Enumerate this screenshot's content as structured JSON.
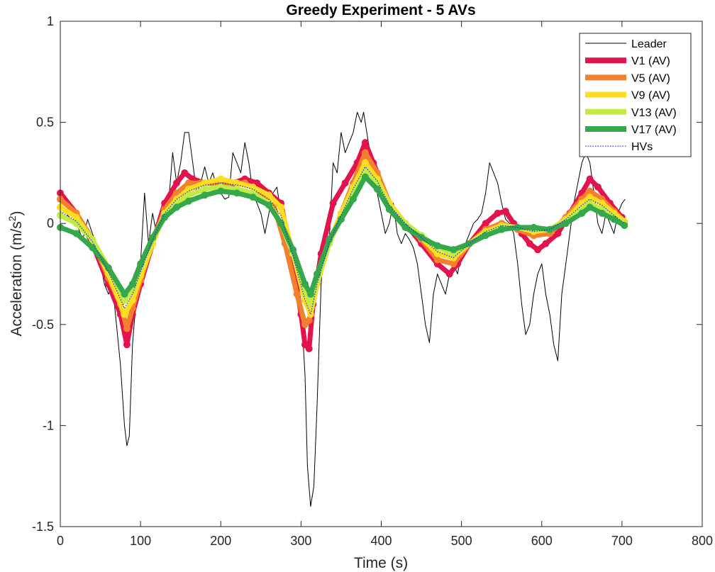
{
  "chart_data": {
    "type": "line",
    "title": "Greedy Experiment - 5 AVs",
    "xlabel": "Time (s)",
    "ylabel_main": "Acceleration (m/s",
    "ylabel_sup": "2",
    "ylabel_close": ")",
    "xlim": [
      0,
      800
    ],
    "ylim": [
      -1.5,
      1
    ],
    "xticks": [
      0,
      100,
      200,
      300,
      400,
      500,
      600,
      700,
      800
    ],
    "xtick_labels": [
      "0",
      "100",
      "200",
      "300",
      "400",
      "500",
      "600",
      "700",
      "800"
    ],
    "yticks": [
      -1.5,
      -1,
      -0.5,
      0,
      0.5,
      1
    ],
    "ytick_labels": [
      "-1.5",
      "-1",
      "-0.5",
      "0",
      "0.5",
      "1"
    ],
    "legend_position": "top-right",
    "grid": false,
    "series": [
      {
        "name": "Leader",
        "color": "#000000",
        "style": "thin",
        "x": [
          0,
          8,
          15,
          22,
          28,
          34,
          40,
          45,
          50,
          55,
          60,
          65,
          70,
          75,
          80,
          83,
          86,
          90,
          95,
          100,
          105,
          110,
          115,
          120,
          125,
          130,
          135,
          140,
          145,
          150,
          155,
          160,
          165,
          170,
          175,
          180,
          185,
          190,
          195,
          200,
          205,
          210,
          215,
          220,
          225,
          230,
          235,
          240,
          245,
          250,
          255,
          260,
          265,
          270,
          275,
          280,
          285,
          290,
          295,
          300,
          305,
          308,
          312,
          316,
          320,
          325,
          330,
          335,
          340,
          345,
          350,
          355,
          360,
          365,
          370,
          375,
          378,
          382,
          386,
          390,
          395,
          400,
          405,
          410,
          415,
          420,
          425,
          430,
          435,
          440,
          445,
          450,
          455,
          460,
          465,
          470,
          475,
          480,
          485,
          490,
          495,
          500,
          505,
          510,
          515,
          520,
          525,
          530,
          535,
          540,
          545,
          550,
          555,
          560,
          565,
          570,
          575,
          580,
          585,
          590,
          595,
          600,
          605,
          610,
          615,
          620,
          625,
          630,
          635,
          640,
          645,
          650,
          655,
          660,
          665,
          670,
          675,
          680,
          685,
          690,
          695,
          700,
          704
        ],
        "y": [
          0.1,
          0.05,
          0.0,
          -0.02,
          -0.08,
          0.02,
          -0.05,
          -0.1,
          -0.2,
          -0.3,
          -0.35,
          -0.3,
          -0.5,
          -0.7,
          -1.0,
          -1.1,
          -1.05,
          -0.6,
          -0.35,
          -0.2,
          0.15,
          -0.1,
          0.05,
          -0.05,
          0.0,
          0.1,
          0.1,
          0.35,
          0.2,
          0.3,
          0.45,
          0.45,
          0.3,
          0.15,
          0.2,
          0.28,
          0.2,
          0.25,
          0.18,
          0.15,
          0.12,
          0.13,
          0.35,
          0.3,
          0.25,
          0.4,
          0.3,
          0.15,
          0.1,
          0.05,
          -0.05,
          0.05,
          0.15,
          0.18,
          0.05,
          -0.05,
          -0.15,
          -0.2,
          -0.3,
          -0.4,
          -0.75,
          -1.2,
          -1.4,
          -1.3,
          -0.9,
          -0.3,
          -0.05,
          -0.1,
          0.3,
          0.25,
          0.45,
          0.35,
          0.4,
          0.45,
          0.55,
          0.5,
          0.55,
          0.45,
          0.35,
          0.25,
          0.15,
          0.05,
          -0.05,
          0.0,
          0.1,
          -0.05,
          -0.1,
          -0.05,
          -0.08,
          -0.12,
          -0.2,
          -0.35,
          -0.5,
          -0.59,
          -0.35,
          -0.25,
          -0.3,
          -0.35,
          -0.25,
          -0.2,
          -0.25,
          -0.15,
          -0.1,
          -0.05,
          0.0,
          0.02,
          0.05,
          0.15,
          0.3,
          0.25,
          0.2,
          0.1,
          0.02,
          0.0,
          -0.05,
          -0.2,
          -0.4,
          -0.55,
          -0.5,
          -0.35,
          -0.25,
          -0.2,
          -0.35,
          -0.45,
          -0.6,
          -0.68,
          -0.35,
          -0.2,
          -0.05,
          0.1,
          0.2,
          0.3,
          0.35,
          0.3,
          0.15,
          0.0,
          -0.05,
          0.05,
          0.0,
          -0.05,
          0.05,
          0.1,
          0.12
        ]
      },
      {
        "name": "V1 (AV)",
        "color": "#E2134D",
        "x": [
          0,
          20,
          40,
          60,
          75,
          83,
          90,
          100,
          115,
          130,
          145,
          155,
          165,
          180,
          200,
          215,
          230,
          245,
          260,
          275,
          290,
          300,
          305,
          310,
          315,
          325,
          340,
          355,
          370,
          380,
          390,
          410,
          430,
          450,
          470,
          485,
          495,
          510,
          530,
          545,
          555,
          565,
          575,
          585,
          595,
          605,
          620,
          635,
          650,
          660,
          670,
          685,
          700,
          703
        ],
        "y": [
          0.15,
          0.05,
          -0.1,
          -0.3,
          -0.45,
          -0.6,
          -0.45,
          -0.3,
          -0.1,
          0.1,
          0.2,
          0.25,
          0.22,
          0.2,
          0.2,
          0.2,
          0.22,
          0.2,
          0.15,
          0.1,
          -0.2,
          -0.45,
          -0.6,
          -0.62,
          -0.4,
          -0.15,
          0.1,
          0.2,
          0.3,
          0.4,
          0.3,
          0.1,
          0.0,
          -0.1,
          -0.2,
          -0.25,
          -0.2,
          -0.1,
          0.0,
          0.05,
          0.06,
          0.0,
          -0.05,
          -0.1,
          -0.13,
          -0.1,
          -0.05,
          0.05,
          0.15,
          0.22,
          0.18,
          0.1,
          0.03,
          0.0
        ]
      },
      {
        "name": "V5 (AV)",
        "color": "#F47F2C",
        "x": [
          0,
          20,
          40,
          60,
          75,
          83,
          90,
          100,
          115,
          130,
          145,
          160,
          175,
          190,
          210,
          230,
          250,
          265,
          280,
          295,
          305,
          310,
          320,
          335,
          350,
          365,
          380,
          395,
          410,
          430,
          450,
          470,
          490,
          510,
          530,
          550,
          570,
          590,
          610,
          630,
          650,
          660,
          675,
          690,
          703
        ],
        "y": [
          0.12,
          0.05,
          -0.08,
          -0.27,
          -0.4,
          -0.52,
          -0.42,
          -0.28,
          -0.1,
          0.07,
          0.15,
          0.2,
          0.2,
          0.2,
          0.2,
          0.2,
          0.15,
          0.1,
          -0.1,
          -0.35,
          -0.5,
          -0.48,
          -0.3,
          -0.1,
          0.05,
          0.2,
          0.35,
          0.25,
          0.1,
          0.0,
          -0.08,
          -0.18,
          -0.2,
          -0.1,
          -0.03,
          0.0,
          -0.03,
          -0.06,
          -0.05,
          0.03,
          0.12,
          0.16,
          0.12,
          0.06,
          0.01
        ]
      },
      {
        "name": "V9 (AV)",
        "color": "#FCDD1F",
        "x": [
          0,
          20,
          40,
          60,
          80,
          90,
          100,
          115,
          130,
          145,
          160,
          180,
          200,
          220,
          240,
          260,
          275,
          290,
          305,
          312,
          320,
          335,
          350,
          365,
          380,
          395,
          410,
          430,
          450,
          470,
          490,
          510,
          530,
          550,
          570,
          590,
          610,
          630,
          650,
          660,
          675,
          690,
          703
        ],
        "y": [
          0.08,
          0.03,
          -0.08,
          -0.25,
          -0.45,
          -0.38,
          -0.26,
          -0.1,
          0.05,
          0.12,
          0.17,
          0.2,
          0.22,
          0.2,
          0.18,
          0.14,
          0.08,
          -0.15,
          -0.38,
          -0.45,
          -0.3,
          -0.1,
          0.05,
          0.18,
          0.3,
          0.22,
          0.1,
          0.0,
          -0.07,
          -0.15,
          -0.17,
          -0.1,
          -0.04,
          -0.01,
          -0.02,
          -0.04,
          -0.03,
          0.02,
          0.1,
          0.13,
          0.1,
          0.05,
          0.01
        ]
      },
      {
        "name": "V13 (AV)",
        "color": "#C2EB47",
        "x": [
          0,
          20,
          40,
          60,
          80,
          90,
          100,
          115,
          130,
          145,
          160,
          180,
          200,
          220,
          240,
          260,
          275,
          290,
          305,
          312,
          320,
          335,
          350,
          365,
          380,
          395,
          410,
          430,
          450,
          470,
          490,
          510,
          530,
          550,
          570,
          590,
          610,
          630,
          650,
          660,
          675,
          690,
          703
        ],
        "y": [
          0.04,
          0.0,
          -0.08,
          -0.22,
          -0.38,
          -0.33,
          -0.22,
          -0.07,
          0.04,
          0.1,
          0.14,
          0.17,
          0.18,
          0.17,
          0.15,
          0.1,
          0.0,
          -0.15,
          -0.33,
          -0.4,
          -0.28,
          -0.1,
          0.03,
          0.15,
          0.26,
          0.2,
          0.08,
          0.0,
          -0.06,
          -0.12,
          -0.15,
          -0.1,
          -0.05,
          -0.02,
          -0.02,
          -0.03,
          -0.03,
          0.01,
          0.07,
          0.1,
          0.07,
          0.03,
          0.0
        ]
      },
      {
        "name": "V17 (AV)",
        "color": "#34A84B",
        "x": [
          0,
          20,
          40,
          60,
          80,
          90,
          100,
          115,
          130,
          145,
          160,
          180,
          200,
          220,
          240,
          260,
          275,
          290,
          305,
          312,
          320,
          335,
          350,
          365,
          380,
          395,
          410,
          430,
          450,
          470,
          490,
          510,
          530,
          550,
          570,
          590,
          610,
          630,
          650,
          660,
          675,
          690,
          703
        ],
        "y": [
          -0.02,
          -0.05,
          -0.12,
          -0.22,
          -0.35,
          -0.3,
          -0.2,
          -0.07,
          0.03,
          0.08,
          0.11,
          0.14,
          0.16,
          0.15,
          0.13,
          0.09,
          0.0,
          -0.13,
          -0.3,
          -0.35,
          -0.25,
          -0.08,
          0.02,
          0.12,
          0.23,
          0.17,
          0.07,
          -0.02,
          -0.07,
          -0.11,
          -0.13,
          -0.1,
          -0.06,
          -0.03,
          -0.02,
          -0.02,
          -0.03,
          0.0,
          0.05,
          0.08,
          0.05,
          0.02,
          -0.01
        ]
      },
      {
        "name": "HVs",
        "color": "#1F2DD6",
        "style": "dotted",
        "x": [
          0,
          20,
          40,
          60,
          80,
          90,
          100,
          115,
          130,
          145,
          160,
          180,
          200,
          220,
          240,
          260,
          275,
          290,
          305,
          312,
          320,
          335,
          350,
          365,
          380,
          395,
          410,
          430,
          450,
          470,
          490,
          510,
          530,
          550,
          570,
          590,
          610,
          630,
          650,
          660,
          675,
          690,
          703
        ],
        "y": [
          0.06,
          0.01,
          -0.09,
          -0.24,
          -0.42,
          -0.35,
          -0.24,
          -0.08,
          0.05,
          0.12,
          0.16,
          0.19,
          0.2,
          0.19,
          0.17,
          0.12,
          0.04,
          -0.16,
          -0.38,
          -0.45,
          -0.3,
          -0.1,
          0.04,
          0.17,
          0.28,
          0.21,
          0.09,
          0.0,
          -0.07,
          -0.14,
          -0.17,
          -0.1,
          -0.04,
          -0.01,
          -0.02,
          -0.04,
          -0.03,
          0.02,
          0.09,
          0.12,
          0.09,
          0.04,
          0.0
        ]
      }
    ]
  }
}
